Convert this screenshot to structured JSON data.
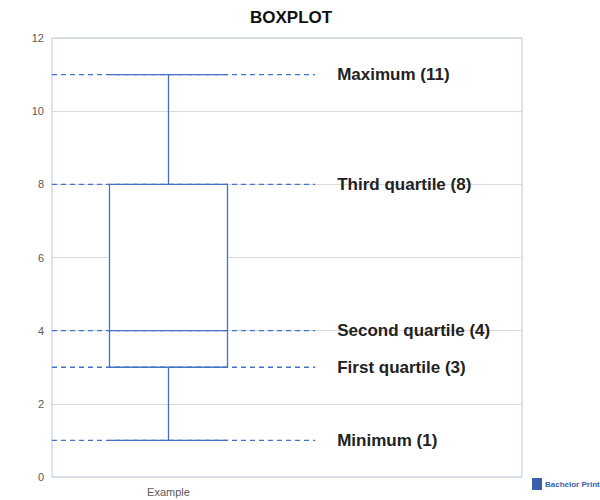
{
  "chart_data": {
    "type": "boxplot",
    "title": "BOXPLOT",
    "categories": [
      "Example"
    ],
    "values": [
      {
        "min": 1,
        "q1": 3,
        "median": 4,
        "q3": 8,
        "max": 11
      }
    ],
    "color": "#4472c4",
    "ylim": [
      0,
      12
    ],
    "yticks": [
      0,
      2,
      4,
      6,
      8,
      10,
      12
    ],
    "grid": true,
    "annotations": [
      {
        "value": 11,
        "label": "Maximum (11)"
      },
      {
        "value": 8,
        "label": "Third quartile (8)"
      },
      {
        "value": 4,
        "label": "Second quartile (4)"
      },
      {
        "value": 3,
        "label": "First quartile (3)"
      },
      {
        "value": 1,
        "label": "Minimum (1)"
      }
    ],
    "credit": "Bachelor Print"
  }
}
